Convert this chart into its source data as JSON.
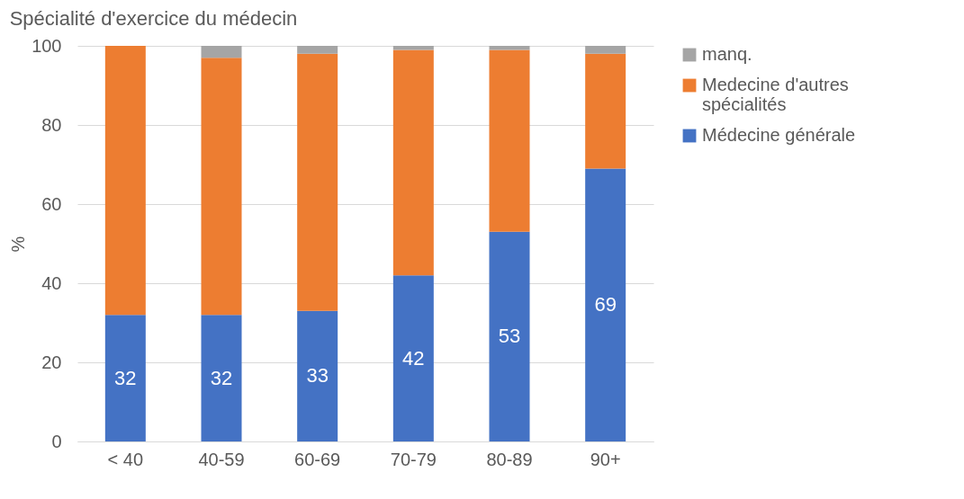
{
  "chart_data": {
    "type": "bar",
    "stacked": true,
    "title": "Spécialité d'exercice du médecin",
    "ylabel": "%",
    "categories": [
      "< 40",
      "40-59",
      "60-69",
      "70-79",
      "80-89",
      "90+"
    ],
    "series": [
      {
        "name": "Médecine générale",
        "color": "#4472c4",
        "values": [
          32,
          32,
          33,
          42,
          53,
          69
        ],
        "value_labels": [
          "32",
          "32",
          "33",
          "42",
          "53",
          "69"
        ]
      },
      {
        "name": "Medecine d'autres spécialités",
        "color": "#ed7d31",
        "values": [
          68,
          65,
          65,
          57,
          46,
          29
        ]
      },
      {
        "name": "manq.",
        "color": "#a5a5a5",
        "values": [
          0,
          3,
          2,
          1,
          1,
          2
        ]
      }
    ],
    "ylim": [
      0,
      100
    ],
    "yticks": [
      0,
      20,
      40,
      60,
      80,
      100
    ],
    "grid": "y",
    "legend": "right"
  }
}
